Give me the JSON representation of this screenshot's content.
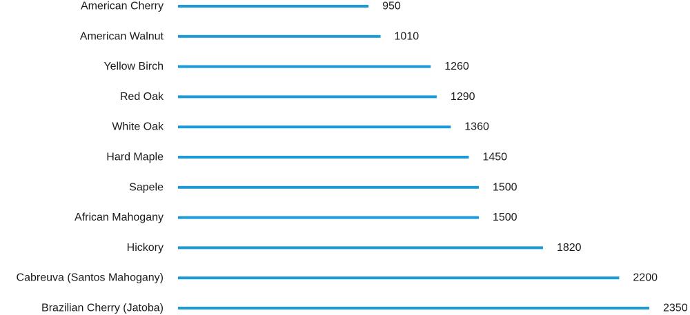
{
  "colors": {
    "bar": "#1a9ad6",
    "text": "#1a1a1a",
    "background": "#ffffff"
  },
  "chart_data": {
    "type": "bar",
    "orientation": "horizontal",
    "title": "",
    "xlabel": "",
    "ylabel": "",
    "grid": false,
    "xlim": [
      0,
      2350
    ],
    "categories": [
      "American Cherry",
      "American Walnut",
      "Yellow Birch",
      "Red Oak",
      "White Oak",
      "Hard Maple",
      "Sapele",
      "African Mahogany",
      "Hickory",
      "Cabreuva (Santos Mahogany)",
      "Brazilian Cherry (Jatoba)"
    ],
    "values": [
      950,
      1010,
      1260,
      1290,
      1360,
      1450,
      1500,
      1500,
      1820,
      2200,
      2350
    ]
  }
}
